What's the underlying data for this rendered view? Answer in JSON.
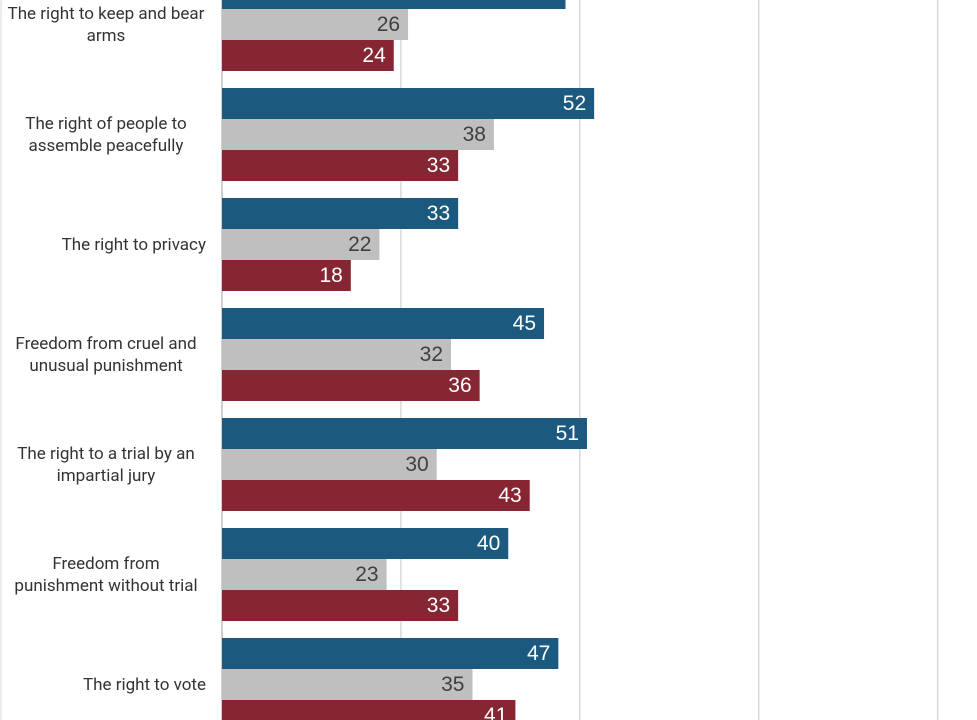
{
  "chart_data": {
    "type": "bar",
    "orientation": "horizontal",
    "categories": [
      "The right to keep and bear arms",
      "The right of people to assemble peacefully",
      "The right to privacy",
      "Freedom from cruel and unusual punishment",
      "The right to a trial by an impartial jury",
      "Freedom from punishment without trial",
      "The right to vote"
    ],
    "series": [
      {
        "color": "#1b5a7e",
        "values": [
          48,
          52,
          33,
          45,
          51,
          40,
          47
        ]
      },
      {
        "color": "#bfbfbf",
        "values": [
          26,
          38,
          22,
          32,
          30,
          23,
          35
        ]
      },
      {
        "color": "#862633",
        "values": [
          24,
          33,
          18,
          36,
          43,
          33,
          41
        ]
      }
    ],
    "xlim": [
      0,
      105.5
    ],
    "xticks": [
      0,
      25,
      50,
      75,
      100
    ],
    "grid": true
  }
}
